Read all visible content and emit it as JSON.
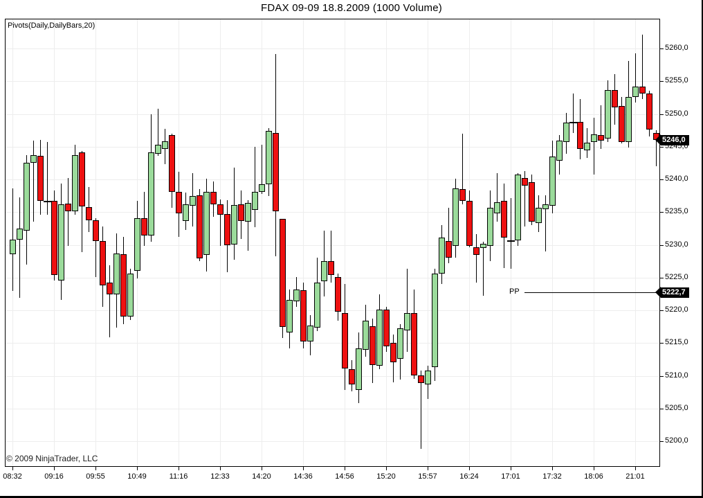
{
  "header": {
    "title": "FDAX 09-09  18.8.2009 (1000 Volume)"
  },
  "plot": {
    "indicator_label": "Pivots(Daily,DailyBars,20)",
    "copyright": "© 2009 NinjaTrader, LLC"
  },
  "last_price": {
    "badge": "5246,0",
    "value": 5246.0
  },
  "pivot_line": {
    "label": "PP",
    "badge": "5222,7",
    "value": 5222.7
  },
  "colors": {
    "up_fill": "#9bdb9b",
    "down_fill": "#ee1111",
    "outline": "#000000",
    "wick": "#000000",
    "grid": "#ededed",
    "badge_bg": "#000000",
    "badge_text": "#ffffff",
    "background": "#ffffff"
  },
  "chart_data": {
    "type": "candlestick",
    "title": "FDAX 09-09  18.8.2009 (1000 Volume)",
    "instrument": "FDAX 09-09",
    "date": "18.8.2009",
    "bar_type": "1000 Volume",
    "grid": true,
    "y_axis_side": "right",
    "ylim": [
      5196,
      5264.5
    ],
    "y_ticks": [
      {
        "value": 5260,
        "label": "5260,0"
      },
      {
        "value": 5255,
        "label": "5255,0"
      },
      {
        "value": 5250,
        "label": "5250,0"
      },
      {
        "value": 5245,
        "label": "5245,0"
      },
      {
        "value": 5240,
        "label": "5240,0"
      },
      {
        "value": 5235,
        "label": "5235,0"
      },
      {
        "value": 5230,
        "label": "5230,0"
      },
      {
        "value": 5225,
        "label": "5225,0"
      },
      {
        "value": 5220,
        "label": "5220,0"
      },
      {
        "value": 5215,
        "label": "5215,0"
      },
      {
        "value": 5210,
        "label": "5210,0"
      },
      {
        "value": 5205,
        "label": "5205,0"
      },
      {
        "value": 5200,
        "label": "5200,0"
      }
    ],
    "x_ticks": [
      {
        "label": "08:32",
        "candle_index": 0
      },
      {
        "label": "09:16",
        "candle_index": 6
      },
      {
        "label": "09:55",
        "candle_index": 12
      },
      {
        "label": "10:49",
        "candle_index": 18
      },
      {
        "label": "11:16",
        "candle_index": 24
      },
      {
        "label": "12:33",
        "candle_index": 30
      },
      {
        "label": "14:20",
        "candle_index": 36
      },
      {
        "label": "14:36",
        "candle_index": 42
      },
      {
        "label": "14:56",
        "candle_index": 48
      },
      {
        "label": "15:20",
        "candle_index": 54
      },
      {
        "label": "15:57",
        "candle_index": 60
      },
      {
        "label": "16:24",
        "candle_index": 66
      },
      {
        "label": "17:01",
        "candle_index": 72
      },
      {
        "label": "17:32",
        "candle_index": 78
      },
      {
        "label": "18:06",
        "candle_index": 84
      },
      {
        "label": "21:01",
        "candle_index": 90
      }
    ],
    "pivot_line": {
      "label": "PP",
      "value": 5222.7
    },
    "last_price": 5246.0,
    "candle_format": [
      "open",
      "high",
      "low",
      "close"
    ],
    "candles": [
      [
        5228.6,
        5238.6,
        5223.0,
        5230.8
      ],
      [
        5230.8,
        5237.2,
        5221.9,
        5232.5
      ],
      [
        5232.2,
        5243.7,
        5227.0,
        5242.5
      ],
      [
        5242.5,
        5245.9,
        5233.5,
        5243.7
      ],
      [
        5243.6,
        5246.0,
        5234.6,
        5236.7
      ],
      [
        5236.6,
        5245.7,
        5234.6,
        5236.6
      ],
      [
        5236.7,
        5238.3,
        5224.6,
        5225.4
      ],
      [
        5224.6,
        5239.4,
        5221.6,
        5236.2
      ],
      [
        5236.3,
        5240.2,
        5229.8,
        5235.1
      ],
      [
        5235.1,
        5245.3,
        5234.6,
        5243.7
      ],
      [
        5244.1,
        5244.3,
        5228.9,
        5235.9
      ],
      [
        5235.8,
        5238.8,
        5232.0,
        5233.8
      ],
      [
        5233.8,
        5234.1,
        5225.1,
        5230.6
      ],
      [
        5230.6,
        5232.8,
        5220.5,
        5223.8
      ],
      [
        5224.2,
        5226.9,
        5215.9,
        5222.4
      ],
      [
        5222.4,
        5231.7,
        5217.4,
        5228.7
      ],
      [
        5228.6,
        5231.2,
        5217.9,
        5219.0
      ],
      [
        5219.0,
        5226.3,
        5218.5,
        5225.6
      ],
      [
        5226.0,
        5236.7,
        5224.9,
        5234.1
      ],
      [
        5234.1,
        5238.1,
        5229.8,
        5231.4
      ],
      [
        5231.4,
        5249.9,
        5230.5,
        5244.1
      ],
      [
        5243.9,
        5250.8,
        5243.6,
        5245.3
      ],
      [
        5244.7,
        5247.7,
        5242.3,
        5245.8
      ],
      [
        5246.8,
        5247.0,
        5235.7,
        5238.1
      ],
      [
        5238.1,
        5241.2,
        5231.2,
        5234.8
      ],
      [
        5233.7,
        5238.0,
        5232.3,
        5236.2
      ],
      [
        5236.0,
        5241.0,
        5232.8,
        5237.5
      ],
      [
        5237.6,
        5238.5,
        5227.5,
        5227.9
      ],
      [
        5228.5,
        5240.1,
        5225.9,
        5238.1
      ],
      [
        5238.1,
        5239.7,
        5234.3,
        5236.2
      ],
      [
        5236.2,
        5236.9,
        5229.8,
        5234.6
      ],
      [
        5234.7,
        5236.8,
        5225.8,
        5229.9
      ],
      [
        5230.1,
        5241.8,
        5227.7,
        5236.1
      ],
      [
        5236.2,
        5238.3,
        5230.9,
        5233.7
      ],
      [
        5233.5,
        5236.8,
        5229.1,
        5236.4
      ],
      [
        5235.3,
        5245.0,
        5232.7,
        5238.1
      ],
      [
        5238.1,
        5245.3,
        5237.8,
        5239.3
      ],
      [
        5239.3,
        5247.8,
        5237.5,
        5247.4
      ],
      [
        5247.1,
        5259.2,
        5228.3,
        5235.1
      ],
      [
        5234.0,
        5234.0,
        5215.8,
        5217.5
      ],
      [
        5216.6,
        5223.2,
        5214.2,
        5221.6
      ],
      [
        5221.4,
        5225.1,
        5220.5,
        5223.2
      ],
      [
        5223.1,
        5224.2,
        5214.2,
        5215.2
      ],
      [
        5215.2,
        5219.3,
        5213.1,
        5217.7
      ],
      [
        5217.4,
        5228.0,
        5216.8,
        5224.2
      ],
      [
        5224.4,
        5232.2,
        5222.1,
        5227.5
      ],
      [
        5227.5,
        5232.2,
        5224.2,
        5225.4
      ],
      [
        5225.1,
        5225.6,
        5218.4,
        5219.8
      ],
      [
        5219.6,
        5224.0,
        5207.8,
        5211.1
      ],
      [
        5211.0,
        5212.4,
        5207.6,
        5208.7
      ],
      [
        5207.8,
        5216.6,
        5205.8,
        5214.2
      ],
      [
        5214.0,
        5220.8,
        5212.9,
        5218.4
      ],
      [
        5217.6,
        5218.7,
        5208.9,
        5211.6
      ],
      [
        5211.5,
        5222.4,
        5211.0,
        5220.1
      ],
      [
        5220.1,
        5220.5,
        5213.7,
        5214.5
      ],
      [
        5215.0,
        5216.3,
        5209.0,
        5212.1
      ],
      [
        5212.6,
        5217.9,
        5209.4,
        5217.2
      ],
      [
        5216.9,
        5226.3,
        5213.7,
        5219.6
      ],
      [
        5219.6,
        5223.2,
        5209.5,
        5210.1
      ],
      [
        5210.1,
        5210.8,
        5198.8,
        5208.9
      ],
      [
        5208.7,
        5211.5,
        5206.5,
        5210.8
      ],
      [
        5211.3,
        5226.3,
        5209.2,
        5225.6
      ],
      [
        5225.6,
        5233.0,
        5224.0,
        5231.1
      ],
      [
        5230.6,
        5235.7,
        5227.2,
        5228.0
      ],
      [
        5229.8,
        5240.1,
        5228.0,
        5238.6
      ],
      [
        5238.5,
        5247.0,
        5236.2,
        5236.7
      ],
      [
        5236.7,
        5238.3,
        5229.6,
        5229.8
      ],
      [
        5229.6,
        5231.6,
        5224.2,
        5228.5
      ],
      [
        5229.5,
        5230.5,
        5222.2,
        5230.2
      ],
      [
        5229.8,
        5238.3,
        5227.5,
        5235.7
      ],
      [
        5234.8,
        5241.0,
        5233.5,
        5236.5
      ],
      [
        5236.7,
        5239.4,
        5226.5,
        5231.1
      ],
      [
        5230.6,
        5237.1,
        5226.4,
        5230.6
      ],
      [
        5230.7,
        5241.0,
        5229.8,
        5240.7
      ],
      [
        5240.2,
        5241.3,
        5232.8,
        5239.0
      ],
      [
        5239.6,
        5240.7,
        5233.0,
        5233.5
      ],
      [
        5233.3,
        5237.6,
        5232.0,
        5235.7
      ],
      [
        5235.5,
        5237.6,
        5229.0,
        5236.2
      ],
      [
        5236.0,
        5245.9,
        5234.8,
        5243.5
      ],
      [
        5242.9,
        5246.8,
        5240.7,
        5245.9
      ],
      [
        5245.7,
        5250.2,
        5243.9,
        5248.7
      ],
      [
        5248.7,
        5253.1,
        5247.1,
        5248.7
      ],
      [
        5248.8,
        5252.3,
        5243.1,
        5244.7
      ],
      [
        5244.4,
        5247.8,
        5243.3,
        5245.6
      ],
      [
        5245.7,
        5249.4,
        5240.7,
        5246.9
      ],
      [
        5246.8,
        5251.3,
        5244.7,
        5245.9
      ],
      [
        5246.2,
        5255.1,
        5245.7,
        5253.7
      ],
      [
        5253.7,
        5256.1,
        5248.4,
        5251.0
      ],
      [
        5251.2,
        5252.6,
        5245.5,
        5245.7
      ],
      [
        5245.7,
        5258.1,
        5244.9,
        5252.6
      ],
      [
        5252.6,
        5259.3,
        5251.7,
        5254.2
      ],
      [
        5254.2,
        5262.1,
        5252.3,
        5253.1
      ],
      [
        5253.1,
        5253.5,
        5246.6,
        5247.6
      ],
      [
        5247.1,
        5247.5,
        5242.0,
        5246.0
      ]
    ]
  }
}
